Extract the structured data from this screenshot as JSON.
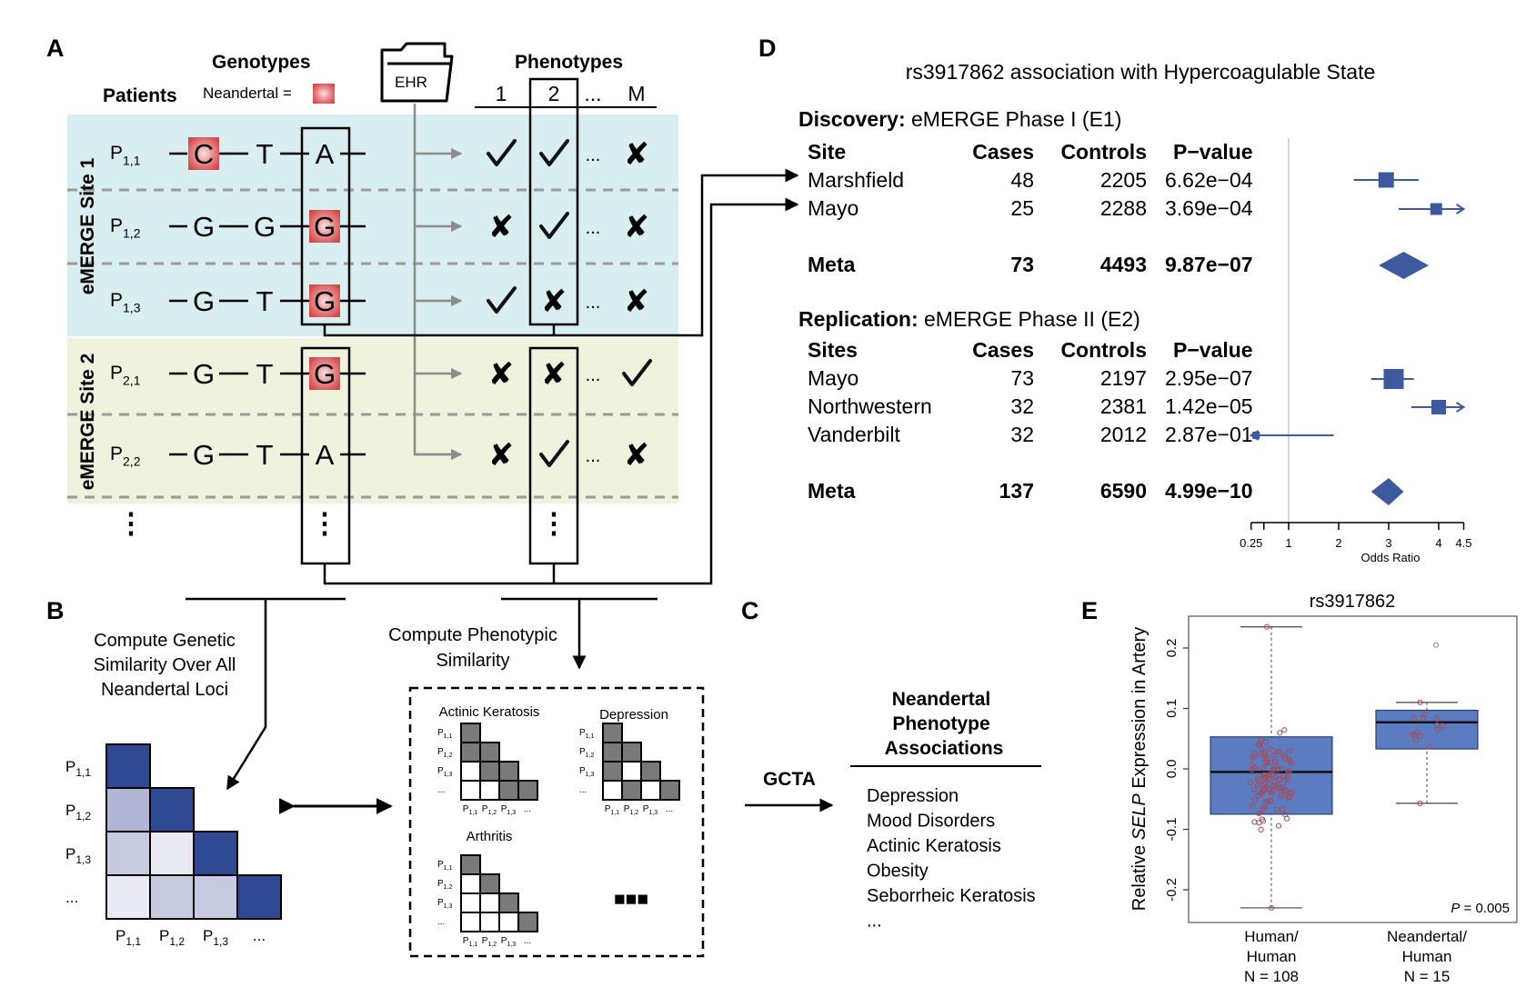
{
  "panel_labels": {
    "a": "A",
    "b": "B",
    "c": "C",
    "d": "D",
    "e": "E"
  },
  "panelA": {
    "genotypes_title": "Genotypes",
    "neandertal_label": "Neandertal =",
    "patients_label": "Patients",
    "ehr_label": "EHR",
    "phenotypes_title": "Phenotypes",
    "phenotype_cols": [
      "1",
      "2",
      "...",
      "M"
    ],
    "site1_label": "eMERGE Site 1",
    "site2_label": "eMERGE Site 2",
    "row_labels": [
      {
        "base": "P",
        "sub": "1,1"
      },
      {
        "base": "P",
        "sub": "1,2"
      },
      {
        "base": "P",
        "sub": "1,3"
      },
      {
        "base": "P",
        "sub": "2,1"
      },
      {
        "base": "P",
        "sub": "2,2"
      }
    ],
    "genotype_rows": [
      [
        "C",
        "T",
        "A"
      ],
      [
        "G",
        "G",
        "G"
      ],
      [
        "G",
        "T",
        "G"
      ],
      [
        "G",
        "T",
        "G"
      ],
      [
        "G",
        "T",
        "A"
      ]
    ],
    "neandertal_highlight": [
      [
        true,
        false,
        false
      ],
      [
        false,
        false,
        true
      ],
      [
        false,
        false,
        true
      ],
      [
        false,
        false,
        true
      ],
      [
        false,
        false,
        false
      ]
    ],
    "phenotype_rows": [
      [
        "check",
        "check",
        "...",
        "cross"
      ],
      [
        "cross",
        "check",
        "...",
        "cross"
      ],
      [
        "check",
        "cross",
        "...",
        "cross"
      ],
      [
        "cross",
        "cross",
        "...",
        "check"
      ],
      [
        "cross",
        "check",
        "...",
        "cross"
      ]
    ],
    "ellipsis": "⋮"
  },
  "panelB": {
    "genetic_text": [
      "Compute Genetic",
      "Similarity Over All",
      "Neandertal Loci"
    ],
    "phenotypic_text": [
      "Compute Phenotypic",
      "Similarity"
    ],
    "matrix_row_labels": [
      {
        "base": "P",
        "sub": "1,1"
      },
      {
        "base": "P",
        "sub": "1,2"
      },
      {
        "base": "P",
        "sub": "1,3"
      },
      {
        "base": "...",
        "sub": ""
      }
    ],
    "matrix_col_labels": [
      {
        "base": "P",
        "sub": "1,1"
      },
      {
        "base": "P",
        "sub": "1,2"
      },
      {
        "base": "P",
        "sub": "1,3"
      },
      {
        "base": "...",
        "sub": ""
      }
    ],
    "small_matrices": [
      {
        "title": "Actinic Keratosis"
      },
      {
        "title": "Depression"
      },
      {
        "title": "Arthritis"
      }
    ],
    "small_row_labels": [
      {
        "base": "P",
        "sub": "1,1"
      },
      {
        "base": "P",
        "sub": "1,2"
      },
      {
        "base": "P",
        "sub": "1,3"
      },
      {
        "base": "...",
        "sub": ""
      }
    ],
    "more_label": "■■■"
  },
  "panelC": {
    "method": "GCTA",
    "assoc_title": [
      "Neandertal",
      "Phenotype",
      "Associations"
    ],
    "assoc_items": [
      "Depression",
      "Mood Disorders",
      "Actinic Keratosis",
      "Obesity",
      "Seborrheic Keratosis",
      "..."
    ]
  },
  "panelD": {
    "title": "rs3917862 association with Hypercoagulable State",
    "discovery_bold": "Discovery:",
    "discovery_rest": " eMERGE Phase I (E1)",
    "replication_bold": "Replication:",
    "replication_rest": " eMERGE Phase II (E2)",
    "headers1": [
      "Site",
      "Cases",
      "Controls",
      "P−value"
    ],
    "headers2": [
      "Sites",
      "Cases",
      "Controls",
      "P−value"
    ],
    "discovery_rows": [
      {
        "site": "Marshfield",
        "cases": "48",
        "controls": "2205",
        "p": "6.62e−04"
      },
      {
        "site": "Mayo",
        "cases": "25",
        "controls": "2288",
        "p": "3.69e−04"
      }
    ],
    "discovery_meta": {
      "site": "Meta",
      "cases": "73",
      "controls": "4493",
      "p": "9.87e−07"
    },
    "replication_rows": [
      {
        "site": "Mayo",
        "cases": "73",
        "controls": "2197",
        "p": "2.95e−07"
      },
      {
        "site": "Northwestern",
        "cases": "32",
        "controls": "2381",
        "p": "1.42e−05"
      },
      {
        "site": "Vanderbilt",
        "cases": "32",
        "controls": "2012",
        "p": "2.87e−01"
      }
    ],
    "replication_meta": {
      "site": "Meta",
      "cases": "137",
      "controls": "6590",
      "p": "4.99e−10"
    },
    "axis_label": "Odds Ratio",
    "axis_ticks": [
      "0.25",
      "1",
      "2",
      "3",
      "4",
      "4.5"
    ]
  },
  "chart_data": [
    {
      "type": "forest",
      "title": "rs3917862 association with Hypercoagulable State",
      "xlabel": "Odds Ratio",
      "xlim": [
        0.25,
        4.5
      ],
      "xticks": [
        0.25,
        1,
        2,
        3,
        4,
        4.5
      ],
      "reference_line": 1,
      "rows": [
        {
          "site": "Marshfield",
          "or": 2.95,
          "ci": [
            2.3,
            3.6
          ]
        },
        {
          "site": "Mayo",
          "or": 3.95,
          "ci": [
            3.2,
            4.5
          ],
          "ci_truncated_high": true
        },
        {
          "site": "Meta",
          "or": 3.3,
          "ci": [
            2.8,
            3.8
          ],
          "meta": true
        },
        {
          "site": "Mayo",
          "or": 3.1,
          "ci": [
            2.65,
            3.5
          ]
        },
        {
          "site": "Northwestern",
          "or": 4.0,
          "ci": [
            3.45,
            4.5
          ],
          "ci_truncated_high": true
        },
        {
          "site": "Vanderbilt",
          "or": 0.35,
          "ci": [
            0.25,
            1.9
          ],
          "ci_truncated_low": true
        },
        {
          "site": "Meta",
          "or": 3.0,
          "ci": [
            2.65,
            3.3
          ],
          "meta": true
        }
      ]
    },
    {
      "type": "boxplot",
      "title": "rs3917862",
      "ylabel_pre": "Relative ",
      "ylabel_gene": "SELP",
      "ylabel_post": " Expression in Artery",
      "ylim": [
        -0.235,
        0.24
      ],
      "yticks": [
        "0.2",
        "0.1",
        "0.0",
        "-0.1",
        "-0.2"
      ],
      "annotation_italic": "P",
      "annotation_rest": " = 0.005",
      "groups": [
        {
          "label": [
            "Human/",
            "Human",
            "N = 108"
          ],
          "min": -0.23,
          "q1": -0.075,
          "median": -0.005,
          "q3": 0.053,
          "max": 0.235,
          "n": 108
        },
        {
          "label": [
            "Neandertal/",
            "Human",
            "N = 15"
          ],
          "min": -0.057,
          "q1": 0.033,
          "median": 0.077,
          "q3": 0.097,
          "max": 0.11,
          "n": 15,
          "outliers": [
            0.205
          ]
        }
      ]
    }
  ]
}
